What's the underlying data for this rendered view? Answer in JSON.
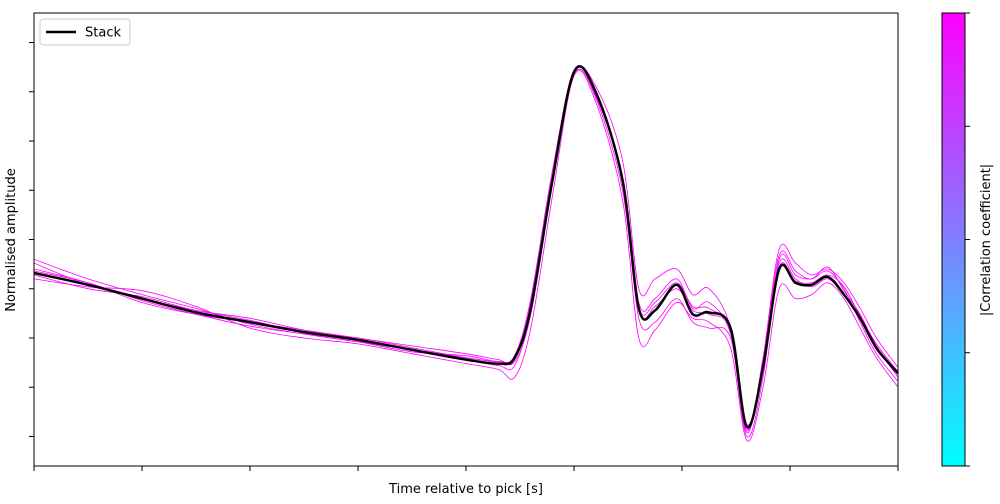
{
  "chart_data": {
    "type": "line",
    "title": "",
    "xlabel": "Time relative to pick [s]",
    "ylabel": "Normalised amplitude",
    "xlim": [
      0,
      8
    ],
    "ylim": [
      -1.65,
      0.65
    ],
    "x_tick_labels_visible": false,
    "y_tick_labels_visible": false,
    "grid": false,
    "legend": {
      "location": "upper-left",
      "entries": [
        "Stack"
      ]
    },
    "colorbar": {
      "label": "|Correlation coefficient|",
      "colormap": "cool",
      "color_low": "#00ffff",
      "color_high": "#ff00ff",
      "tick_labels_visible": false
    },
    "series": [
      {
        "name": "Stack",
        "color": "#000000",
        "x": [
          0,
          0.5,
          1.0,
          1.5,
          2.0,
          2.5,
          3.0,
          3.5,
          4.0,
          4.3,
          4.45,
          4.6,
          4.8,
          5.0,
          5.2,
          5.45,
          5.6,
          5.75,
          5.95,
          6.1,
          6.25,
          6.45,
          6.6,
          6.75,
          6.9,
          7.05,
          7.2,
          7.35,
          7.5,
          7.65,
          7.8,
          8.0
        ],
        "y": [
          -0.67,
          -0.73,
          -0.8,
          -0.87,
          -0.92,
          -0.97,
          -1.01,
          -1.06,
          -1.11,
          -1.13,
          -1.1,
          -0.85,
          -0.2,
          0.35,
          0.25,
          -0.2,
          -0.85,
          -0.86,
          -0.73,
          -0.88,
          -0.87,
          -0.95,
          -1.45,
          -1.15,
          -0.65,
          -0.72,
          -0.73,
          -0.69,
          -0.78,
          -0.9,
          -1.05,
          -1.18
        ]
      },
      {
        "name": "",
        "color": "#ff00ff",
        "x": [
          0,
          0.5,
          1.0,
          1.5,
          2.0,
          2.5,
          3.0,
          3.5,
          4.0,
          4.3,
          4.45,
          4.6,
          4.8,
          5.0,
          5.2,
          5.45,
          5.6,
          5.75,
          5.95,
          6.1,
          6.25,
          6.45,
          6.6,
          6.75,
          6.9,
          7.05,
          7.2,
          7.35,
          7.5,
          7.65,
          7.8,
          8.0
        ],
        "y": [
          -0.6,
          -0.7,
          -0.78,
          -0.85,
          -0.93,
          -0.98,
          -1.02,
          -1.06,
          -1.1,
          -1.12,
          -1.09,
          -0.8,
          -0.15,
          0.35,
          0.28,
          -0.1,
          -0.75,
          -0.7,
          -0.65,
          -0.78,
          -0.75,
          -0.95,
          -1.48,
          -1.1,
          -0.55,
          -0.62,
          -0.68,
          -0.65,
          -0.72,
          -0.85,
          -1.0,
          -1.15
        ]
      },
      {
        "name": "",
        "color": "#ff00ff",
        "x": [
          0,
          0.5,
          1.0,
          1.5,
          2.0,
          2.5,
          3.0,
          3.5,
          4.0,
          4.3,
          4.45,
          4.6,
          4.8,
          5.0,
          5.2,
          5.45,
          5.6,
          5.75,
          5.95,
          6.1,
          6.25,
          6.45,
          6.6,
          6.75,
          6.9,
          7.05,
          7.2,
          7.35,
          7.5,
          7.65,
          7.8,
          8.0
        ],
        "y": [
          -0.65,
          -0.72,
          -0.82,
          -0.88,
          -0.92,
          -0.96,
          -1.0,
          -1.04,
          -1.08,
          -1.11,
          -1.12,
          -0.88,
          -0.22,
          0.34,
          0.22,
          -0.25,
          -0.9,
          -0.92,
          -0.8,
          -0.92,
          -0.95,
          -1.0,
          -1.5,
          -1.2,
          -0.6,
          -0.68,
          -0.7,
          -0.66,
          -0.75,
          -0.92,
          -1.08,
          -1.22
        ]
      },
      {
        "name": "",
        "color": "#ff00ff",
        "x": [
          0,
          0.5,
          1.0,
          1.5,
          2.0,
          2.5,
          3.0,
          3.5,
          4.0,
          4.3,
          4.45,
          4.6,
          4.8,
          5.0,
          5.2,
          5.45,
          5.6,
          5.75,
          5.95,
          6.1,
          6.25,
          6.45,
          6.6,
          6.75,
          6.9,
          7.05,
          7.2,
          7.35,
          7.5,
          7.65,
          7.8,
          8.0
        ],
        "y": [
          -0.7,
          -0.74,
          -0.76,
          -0.84,
          -0.95,
          -1.0,
          -1.03,
          -1.08,
          -1.13,
          -1.16,
          -1.2,
          -0.95,
          -0.28,
          0.33,
          0.2,
          -0.3,
          -1.0,
          -0.96,
          -0.82,
          -0.9,
          -0.92,
          -1.05,
          -1.52,
          -1.25,
          -0.75,
          -0.8,
          -0.78,
          -0.72,
          -0.8,
          -0.95,
          -1.1,
          -1.25
        ]
      },
      {
        "name": "",
        "color": "#ff00ff",
        "x": [
          0,
          0.5,
          1.0,
          1.5,
          2.0,
          2.5,
          3.0,
          3.5,
          4.0,
          4.3,
          4.45,
          4.6,
          4.8,
          5.0,
          5.2,
          5.45,
          5.6,
          5.75,
          5.95,
          6.1,
          6.25,
          6.45,
          6.6,
          6.75,
          6.9,
          7.05,
          7.2,
          7.35,
          7.5,
          7.65,
          7.8,
          8.0
        ],
        "y": [
          -0.62,
          -0.73,
          -0.8,
          -0.86,
          -0.91,
          -0.97,
          -1.0,
          -1.05,
          -1.1,
          -1.12,
          -1.11,
          -0.82,
          -0.18,
          0.36,
          0.24,
          -0.18,
          -0.82,
          -0.8,
          -0.7,
          -0.85,
          -0.82,
          -0.98,
          -1.47,
          -1.12,
          -0.58,
          -0.66,
          -0.7,
          -0.64,
          -0.76,
          -0.88,
          -1.04,
          -1.2
        ]
      },
      {
        "name": "",
        "color": "#ff00ff",
        "x": [
          0,
          0.5,
          1.0,
          1.5,
          2.0,
          2.5,
          3.0,
          3.5,
          4.0,
          4.3,
          4.45,
          4.6,
          4.8,
          5.0,
          5.2,
          5.45,
          5.6,
          5.75,
          5.95,
          6.1,
          6.25,
          6.45,
          6.6,
          6.75,
          6.9,
          7.05,
          7.2,
          7.35,
          7.5,
          7.65,
          7.8,
          8.0
        ],
        "y": [
          -0.68,
          -0.75,
          -0.79,
          -0.86,
          -0.9,
          -0.96,
          -1.01,
          -1.06,
          -1.11,
          -1.14,
          -1.14,
          -0.86,
          -0.2,
          0.35,
          0.26,
          -0.22,
          -0.86,
          -0.84,
          -0.75,
          -0.86,
          -0.88,
          -0.96,
          -1.44,
          -1.14,
          -0.62,
          -0.7,
          -0.74,
          -0.7,
          -0.78,
          -0.9,
          -1.06,
          -1.18
        ]
      },
      {
        "name": "",
        "color": "#ff00ff",
        "x": [
          0,
          0.5,
          1.0,
          1.5,
          2.0,
          2.5,
          3.0,
          3.5,
          4.0,
          4.3,
          4.45,
          4.6,
          4.8,
          5.0,
          5.2,
          5.45,
          5.6,
          5.75,
          5.95,
          6.1,
          6.25,
          6.45,
          6.6,
          6.75,
          6.9,
          7.05,
          7.2,
          7.35,
          7.5,
          7.65,
          7.8,
          8.0
        ],
        "y": [
          -0.66,
          -0.72,
          -0.81,
          -0.88,
          -0.94,
          -0.98,
          -1.02,
          -1.07,
          -1.09,
          -1.12,
          -1.1,
          -0.84,
          -0.19,
          0.34,
          0.23,
          -0.2,
          -0.84,
          -0.82,
          -0.72,
          -0.84,
          -0.85,
          -0.97,
          -1.46,
          -1.16,
          -0.64,
          -0.71,
          -0.72,
          -0.68,
          -0.74,
          -0.89,
          -1.03,
          -1.17
        ]
      }
    ]
  }
}
